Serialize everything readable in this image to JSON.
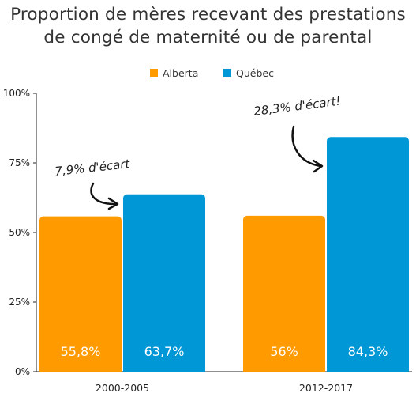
{
  "chart_data": {
    "type": "bar",
    "title": "Proportion de mères recevant des prestations",
    "subtitle": "de congé de maternité ou de parental",
    "categories": [
      "2000-2005",
      "2012-2017"
    ],
    "series": [
      {
        "name": "Alberta",
        "color": "#ff9a00",
        "values": [
          55.8,
          56
        ],
        "labels": [
          "55,8%",
          "56%"
        ]
      },
      {
        "name": "Québec",
        "color": "#0097d6",
        "values": [
          63.7,
          84.3
        ],
        "labels": [
          "63,7%",
          "84,3%"
        ]
      }
    ],
    "ylim": [
      0,
      100
    ],
    "yticks": [
      0,
      25,
      50,
      75,
      100
    ],
    "ytick_labels": [
      "0%",
      "25%",
      "50%",
      "75%",
      "100%"
    ],
    "grid": false,
    "legend_position": "top-center",
    "annotations": [
      {
        "text": "7,9% d'écart",
        "category": "2000-2005"
      },
      {
        "text": "28,3% d'écart!",
        "category": "2012-2017"
      }
    ]
  }
}
